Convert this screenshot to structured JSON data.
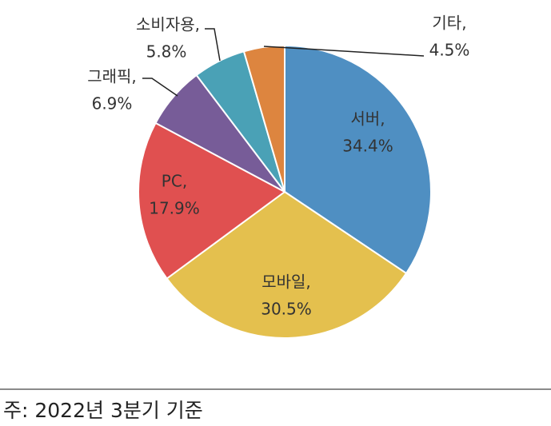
{
  "chart_data": {
    "type": "pie",
    "categories": [
      "서버,",
      "모바일,",
      "PC,",
      "그래픽,",
      "소비자용,",
      "기타,"
    ],
    "values": [
      34.4,
      30.5,
      17.9,
      6.9,
      5.8,
      4.5
    ],
    "value_labels": [
      "34.4%",
      "30.5%",
      "17.9%",
      "6.9%",
      "5.8%",
      "4.5%"
    ],
    "colors": [
      "#4f8fc2",
      "#e4c04e",
      "#e05050",
      "#775c98",
      "#4aa1b6",
      "#dd853f"
    ]
  },
  "note": "주: 2022년 3분기 기준"
}
